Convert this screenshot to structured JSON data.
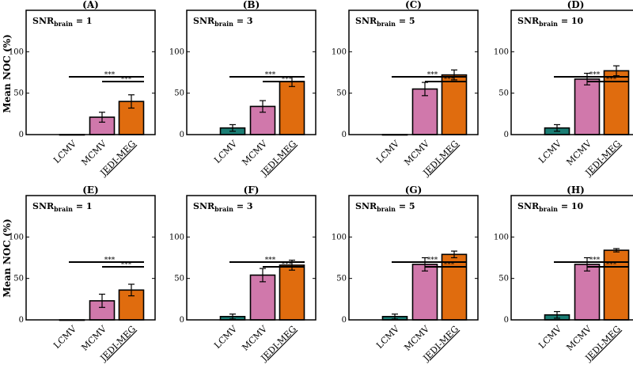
{
  "chart_data": {
    "type": "bar",
    "ylabel": "Mean NOC (%)",
    "ylim": [
      0,
      150
    ],
    "yticks": [
      0,
      50,
      100
    ],
    "categories": [
      "LCMV",
      "MCMV",
      "JEDI-MEG"
    ],
    "category_colors": [
      "#1b7d74",
      "#d078ab",
      "#e06c0e"
    ],
    "snr_prefix": "SNR",
    "snr_subscript": "brain",
    "significance_marker": "***",
    "panels": [
      {
        "label": "(A)",
        "snr_text": " = 1",
        "values": [
          0,
          21,
          40
        ],
        "errors": [
          0,
          6,
          8
        ],
        "lines": [
          {
            "from": 0,
            "to": 2,
            "label": "***"
          },
          {
            "from": 1,
            "to": 2,
            "label": "***"
          }
        ]
      },
      {
        "label": "(B)",
        "snr_text": " = 3",
        "values": [
          8,
          34,
          64
        ],
        "errors": [
          4,
          7,
          6
        ],
        "lines": [
          {
            "from": 0,
            "to": 2,
            "label": "***"
          },
          {
            "from": 1,
            "to": 2,
            "label": "***"
          }
        ]
      },
      {
        "label": "(C)",
        "snr_text": " = 5",
        "values": [
          0,
          55,
          72
        ],
        "errors": [
          0,
          8,
          6
        ],
        "lines": [
          {
            "from": 0,
            "to": 2,
            "label": "***"
          },
          {
            "from": 1,
            "to": 2,
            "label": "***"
          }
        ]
      },
      {
        "label": "(D)",
        "snr_text": " = 10",
        "values": [
          8,
          67,
          77
        ],
        "errors": [
          4,
          7,
          6
        ],
        "lines": [
          {
            "from": 0,
            "to": 2,
            "label": "***"
          },
          {
            "from": 1,
            "to": 2,
            "label": "***"
          }
        ]
      },
      {
        "label": "(E)",
        "snr_text": " = 1",
        "values": [
          0,
          23,
          36
        ],
        "errors": [
          0,
          8,
          7
        ],
        "lines": [
          {
            "from": 0,
            "to": 2,
            "label": "***"
          },
          {
            "from": 1,
            "to": 2,
            "label": "***"
          }
        ]
      },
      {
        "label": "(F)",
        "snr_text": " = 3",
        "values": [
          4,
          54,
          66
        ],
        "errors": [
          3,
          8,
          6
        ],
        "lines": [
          {
            "from": 0,
            "to": 2,
            "label": "***"
          },
          {
            "from": 1,
            "to": 2,
            "label": "***"
          }
        ]
      },
      {
        "label": "(G)",
        "snr_text": " = 5",
        "values": [
          4,
          67,
          79
        ],
        "errors": [
          3,
          8,
          4
        ],
        "lines": [
          {
            "from": 0,
            "to": 2,
            "label": "***"
          },
          {
            "from": 1,
            "to": 2,
            "label": "***"
          }
        ]
      },
      {
        "label": "(H)",
        "snr_text": " = 10",
        "values": [
          6,
          67,
          84
        ],
        "errors": [
          4,
          8,
          2
        ],
        "lines": [
          {
            "from": 0,
            "to": 2,
            "label": "***"
          },
          {
            "from": 1,
            "to": 2,
            "label": "***"
          }
        ]
      }
    ]
  }
}
